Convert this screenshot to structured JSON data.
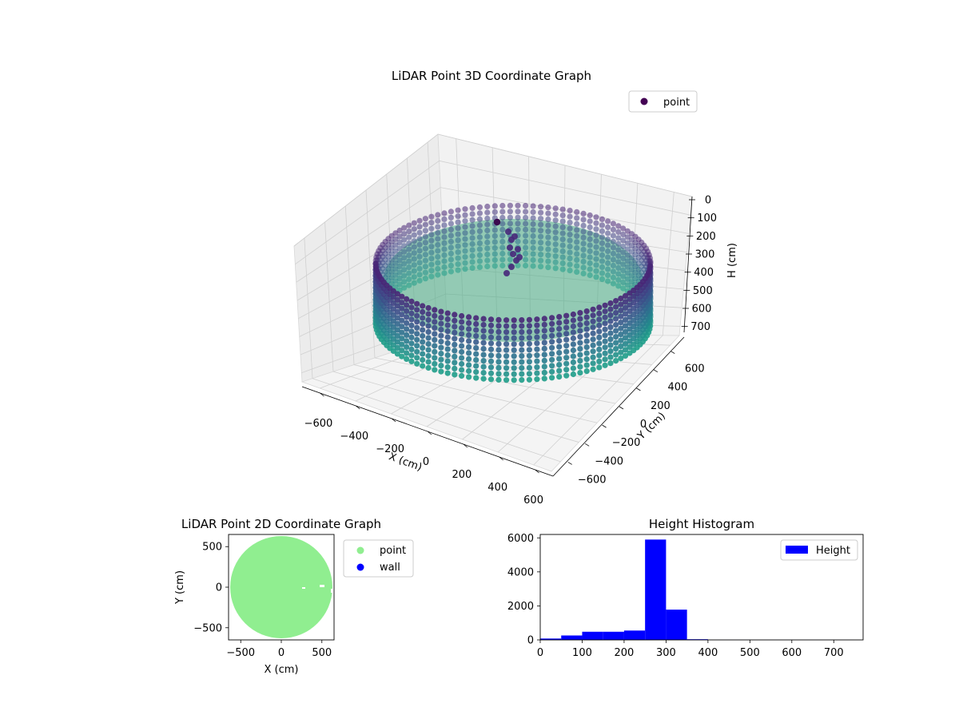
{
  "chart_data": [
    {
      "type": "scatter",
      "title": "LiDAR Point 3D Coordinate Graph",
      "xlabel": "X (cm)",
      "ylabel": "Y (cm)",
      "zlabel": "H (cm)",
      "legend": {
        "entries": [
          "point"
        ],
        "placement": "top-right"
      },
      "xticks": [
        "−600",
        "−400",
        "−200",
        "0",
        "200",
        "400",
        "600"
      ],
      "xtick_values": [
        -600,
        -400,
        -200,
        0,
        200,
        400,
        600
      ],
      "yticks": [
        "600",
        "400",
        "200",
        "0",
        "−200",
        "−400",
        "−600"
      ],
      "ytick_values": [
        600,
        400,
        200,
        0,
        -200,
        -400,
        -600
      ],
      "zticks": [
        "0",
        "100",
        "200",
        "300",
        "400",
        "500",
        "600",
        "700"
      ],
      "ztick_values": [
        0,
        100,
        200,
        300,
        400,
        500,
        600,
        700
      ],
      "xlim": [
        -700,
        700
      ],
      "ylim": [
        -700,
        700
      ],
      "zlim": [
        0,
        750
      ],
      "z_inverted": true,
      "grid": true,
      "point_cloud": {
        "shape": "cylindrical-wall",
        "radius": 600,
        "wall_height_range": [
          0,
          350
        ],
        "colormap": "viridis"
      }
    },
    {
      "type": "scatter",
      "title": "LiDAR Point 2D Coordinate Graph",
      "xlabel": "X (cm)",
      "ylabel": "Y (cm)",
      "xticks": [
        "−500",
        "0",
        "500"
      ],
      "xtick_values": [
        -500,
        0,
        500
      ],
      "yticks": [
        "500",
        "0",
        "−500"
      ],
      "ytick_values": [
        500,
        0,
        -500
      ],
      "xlim": [
        -650,
        650
      ],
      "ylim": [
        -650,
        650
      ],
      "legend": {
        "entries": [
          "point",
          "wall"
        ],
        "placement": "outside-right"
      },
      "series": [
        {
          "name": "point",
          "color": "#90ee90",
          "shape": "filled-disk",
          "radius": 630
        },
        {
          "name": "wall",
          "color": "#0000ff"
        }
      ]
    },
    {
      "type": "bar",
      "title": "Height Histogram",
      "xlim": [
        0,
        770
      ],
      "ylim": [
        0,
        6200
      ],
      "xticks": [
        "0",
        "100",
        "200",
        "300",
        "400",
        "500",
        "600",
        "700"
      ],
      "xtick_values": [
        0,
        100,
        200,
        300,
        400,
        500,
        600,
        700
      ],
      "yticks": [
        "0",
        "2000",
        "4000",
        "6000"
      ],
      "ytick_values": [
        0,
        2000,
        4000,
        6000
      ],
      "legend": {
        "entries": [
          "Height"
        ],
        "placement": "top-right"
      },
      "bar_color": "#0000ff",
      "bins": [
        {
          "start": 0,
          "end": 50,
          "count": 80
        },
        {
          "start": 50,
          "end": 100,
          "count": 260
        },
        {
          "start": 100,
          "end": 150,
          "count": 480
        },
        {
          "start": 150,
          "end": 200,
          "count": 480
        },
        {
          "start": 200,
          "end": 250,
          "count": 550
        },
        {
          "start": 250,
          "end": 300,
          "count": 5900
        },
        {
          "start": 300,
          "end": 350,
          "count": 1780
        },
        {
          "start": 350,
          "end": 400,
          "count": 40
        },
        {
          "start": 400,
          "end": 450,
          "count": 5
        },
        {
          "start": 450,
          "end": 500,
          "count": 3
        },
        {
          "start": 500,
          "end": 550,
          "count": 2
        },
        {
          "start": 550,
          "end": 600,
          "count": 2
        },
        {
          "start": 600,
          "end": 650,
          "count": 2
        },
        {
          "start": 650,
          "end": 700,
          "count": 2
        },
        {
          "start": 700,
          "end": 750,
          "count": 2
        }
      ]
    }
  ]
}
